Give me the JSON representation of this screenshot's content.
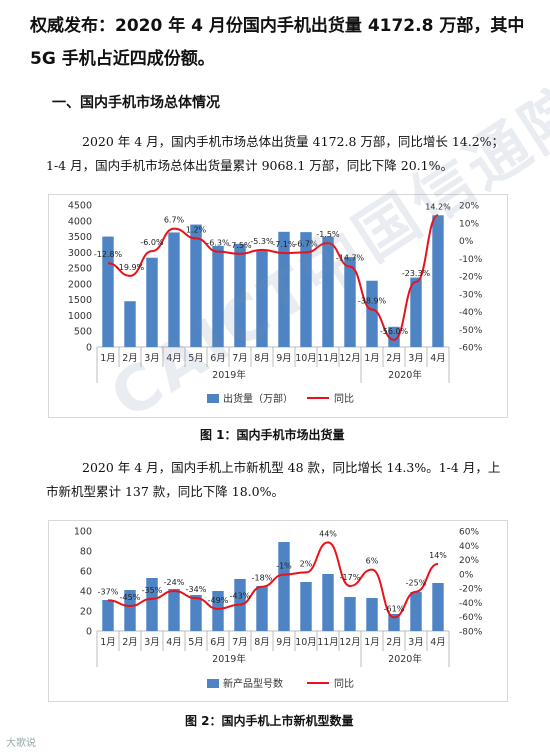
{
  "title": "权威发布：2020 年 4 月份国内手机出货量 4172.8 万部，其中 5G 手机占近四成份额。",
  "section_heading": "一、国内手机市场总体情况",
  "para1": [
    "2020 年 4 月，国内手机市场总体出货量 4172.8 万部，同比增长 14.2%；",
    "1-4 月，国内手机市场总体出货量累计 9068.1 万部，同比下降 20.1%。"
  ],
  "para2": [
    "2020 年 4 月，国内手机上市新机型 48 款，同比增长 14.3%。1-4 月，上",
    "市新机型累计 137 款，同比下降 18.0%。"
  ],
  "watermark": "CAICT中国信通院",
  "corner_mark": "大歌说",
  "colors": {
    "bar": "#4e84c4",
    "line": "#e8121a"
  },
  "chart_data": [
    {
      "type": "bar",
      "categories": [
        "1月",
        "2月",
        "3月",
        "4月",
        "5月",
        "6月",
        "7月",
        "8月",
        "9月",
        "10月",
        "11月",
        "12月",
        "1月",
        "2月",
        "3月",
        "4月"
      ],
      "groups": [
        {
          "label": "2019年",
          "count": 12
        },
        {
          "label": "2020年",
          "count": 4
        }
      ],
      "series": [
        {
          "name": "出货量（万部）",
          "kind": "bar",
          "axis": "left",
          "values": [
            3500,
            1450,
            2830,
            3630,
            3880,
            3200,
            3270,
            3060,
            3650,
            3640,
            3500,
            2850,
            2100,
            640,
            2200,
            4173
          ]
        },
        {
          "name": "同比",
          "kind": "line",
          "axis": "right",
          "values": [
            -12.8,
            -19.9,
            -6.0,
            6.7,
            1.2,
            -6.3,
            -7.5,
            -5.3,
            -7.1,
            -6.7,
            -1.5,
            -14.7,
            -38.9,
            -56.0,
            -23.3,
            14.2
          ],
          "labels": [
            "-12.8%",
            "-19.9%",
            "-6.0%",
            "6.7%",
            "1.2%",
            "-6.3%",
            "-7.5%",
            "-5.3%",
            "-7.1%",
            "-6.7%",
            "-1.5%",
            "-14.7%",
            "-38.9%",
            "-56.0%",
            "-23.3%",
            "14.2%"
          ]
        }
      ],
      "ylim": [
        0,
        4500
      ],
      "yticks": [
        0,
        500,
        1000,
        1500,
        2000,
        2500,
        3000,
        3500,
        4000,
        4500
      ],
      "y2lim": [
        -60,
        20
      ],
      "y2ticks": [
        "20%",
        "10%",
        "0%",
        "-10%",
        "-20%",
        "-30%",
        "-40%",
        "-50%",
        "-60%"
      ],
      "legend": "bottom",
      "caption": "图 1：国内手机市场出货量"
    },
    {
      "type": "bar",
      "categories": [
        "1月",
        "2月",
        "3月",
        "4月",
        "5月",
        "6月",
        "7月",
        "8月",
        "9月",
        "10月",
        "11月",
        "12月",
        "1月",
        "2月",
        "3月",
        "4月"
      ],
      "groups": [
        {
          "label": "2019年",
          "count": 12
        },
        {
          "label": "2020年",
          "count": 4
        }
      ],
      "series": [
        {
          "name": "新产品型号数",
          "kind": "bar",
          "axis": "left",
          "values": [
            31,
            41,
            53,
            42,
            36,
            40,
            52,
            45,
            89,
            49,
            57,
            34,
            33,
            17,
            39,
            48
          ]
        },
        {
          "name": "同比",
          "kind": "line",
          "axis": "right",
          "values": [
            -37,
            -45,
            -35,
            -24,
            -34,
            -49,
            -43,
            -18,
            -1,
            2,
            44,
            -17,
            6,
            -61,
            -25,
            14
          ],
          "labels": [
            "-37%",
            "-45%",
            "-35%",
            "-24%",
            "-34%",
            "-49%",
            "-43%",
            "-18%",
            "-1%",
            "2%",
            "44%",
            "-17%",
            "6%",
            "-61%",
            "-25%",
            "14%"
          ]
        }
      ],
      "ylim": [
        0,
        100
      ],
      "yticks": [
        0,
        20,
        40,
        60,
        80,
        100
      ],
      "y2lim": [
        -80,
        60
      ],
      "y2ticks": [
        "60%",
        "40%",
        "20%",
        "0%",
        "-20%",
        "-40%",
        "-60%",
        "-80%"
      ],
      "legend": "bottom",
      "caption": "图 2：国内手机上市新机型数量"
    }
  ]
}
